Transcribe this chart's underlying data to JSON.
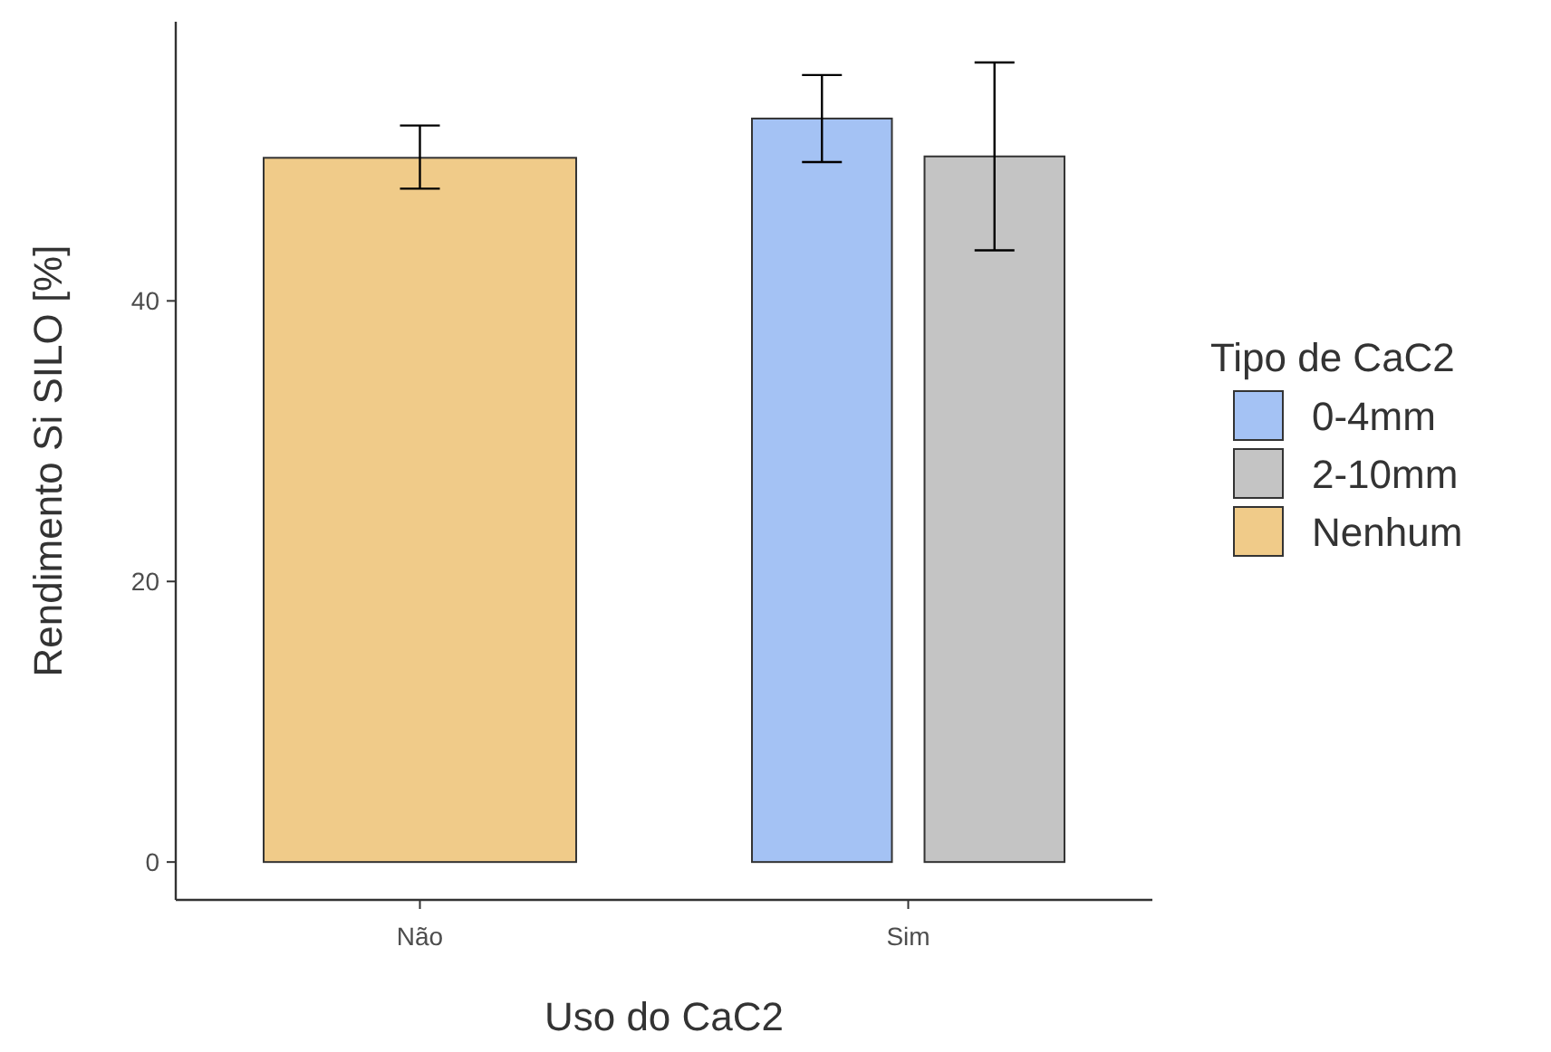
{
  "chart_data": {
    "type": "bar",
    "xlabel": "Uso do CaC2",
    "ylabel": "Rendimento Si SILO [%]",
    "legend_title": "Tipo de CaC2",
    "legend": "right",
    "grid": false,
    "categories": [
      "Não",
      "Sim"
    ],
    "series": [
      {
        "name": "0-4mm",
        "color": "#a4c2f4",
        "values": [
          null,
          53.0
        ],
        "errors": [
          null,
          [
            49.9,
            56.1
          ]
        ]
      },
      {
        "name": "2-10mm",
        "color": "#c4c4c4",
        "values": [
          null,
          50.3
        ],
        "errors": [
          null,
          [
            43.6,
            57.0
          ]
        ]
      },
      {
        "name": "Nenhum",
        "color": "#f0cb89",
        "values": [
          50.2,
          null
        ],
        "errors": [
          [
            48.0,
            52.5
          ],
          null
        ]
      }
    ],
    "ylim": [
      -2.7,
      59.9
    ],
    "yticks": [
      0,
      20,
      40
    ]
  }
}
